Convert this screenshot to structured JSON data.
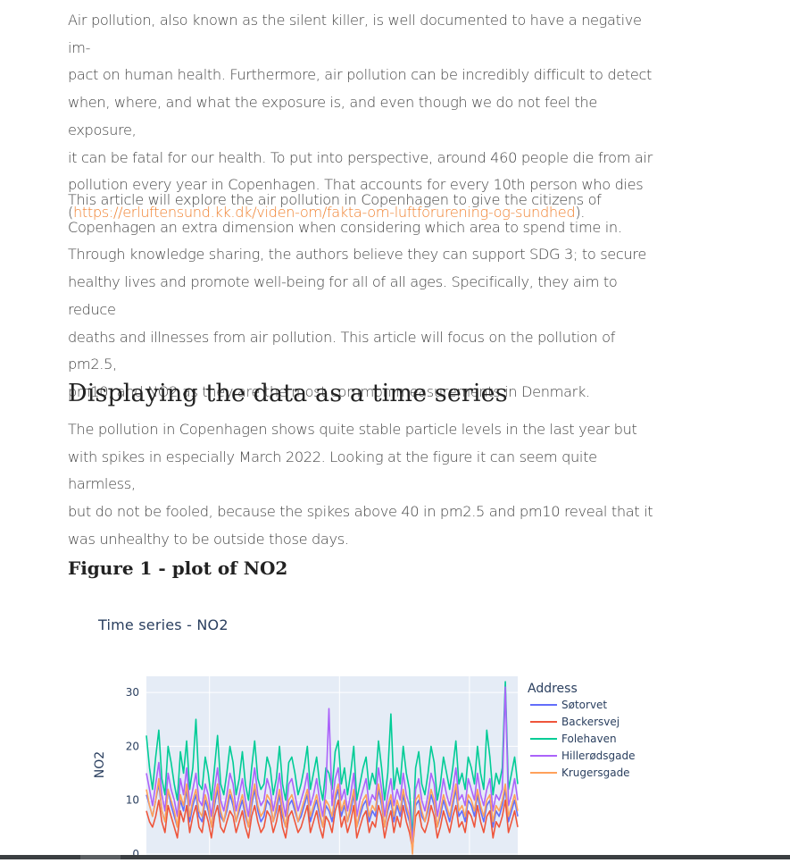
{
  "article": {
    "paragraph1_lines": [
      "Air pollution, also known as the silent killer, is well documented to have a negative im-",
      "pact on human health. Furthermore, air pollution can be incredibly difficult to detect",
      "when, where, and what the exposure is, and even though we do not feel the exposure,",
      "it can be fatal for our health. To put into perspective, around 460 people die from air",
      "pollution every year in Copenhagen. That accounts for every 10th person who dies"
    ],
    "paragraph1_open": "(",
    "paragraph1_link": "https://erluftensund.kk.dk/viden-om/fakta-om-luftforurening-og-sundhed",
    "paragraph1_close": ").",
    "paragraph2_lines": [
      "This article will explore the air pollution in Copenhagen to give the citizens of",
      "Copenhagen an extra dimension when considering which area to spend time in.",
      "Through knowledge sharing, the authors believe they can support SDG 3; to secure",
      "healthy lives and promote well-being for all of all ages. Specifically, they aim to reduce",
      "deaths and illnesses from air pollution. This article will focus on the pollution of pm2.5,",
      "pm10, and NO2 as they are the most common measurements in Denmark."
    ],
    "heading": "Displaying the data as a time series",
    "paragraph3_lines": [
      "The pollution in Copenhagen shows quite stable particle levels in the last year but",
      "with spikes in especially March 2022. Looking at the figure it can seem quite harmless,",
      "but do not be fooled, because the spikes above 40 in pm2.5 and pm10 reveal that it",
      "was unhealthy to be outside those days."
    ],
    "figure_heading": "Figure 1 - plot of NO2"
  },
  "chart_data": {
    "type": "line",
    "title": "Time series - NO2",
    "ylabel": "NO2",
    "xlabel": "",
    "ylim": [
      -1,
      33
    ],
    "y_ticks": [
      "0",
      "10",
      "20",
      "30"
    ],
    "legend_title": "Address",
    "legend_position": "right",
    "grid": true,
    "series": [
      {
        "name": "Søtorvet",
        "color": "#636efa",
        "values": [
          11,
          9,
          7,
          10,
          13,
          8,
          6,
          12,
          9,
          7,
          5,
          10,
          8,
          12,
          6,
          9,
          11,
          7,
          6,
          10,
          8,
          5,
          9,
          12,
          7,
          6,
          8,
          11,
          9,
          6,
          8,
          10,
          7,
          5,
          9,
          12,
          8,
          6,
          7,
          10,
          9,
          6,
          8,
          11,
          7,
          5,
          9,
          10,
          8,
          6,
          7,
          9,
          11,
          6,
          8,
          10,
          7,
          5,
          9,
          8,
          6,
          10,
          12,
          7,
          9,
          6,
          8,
          11,
          5,
          7,
          9,
          10,
          6,
          8,
          7,
          12,
          9,
          5,
          8,
          10,
          6,
          9,
          7,
          11,
          8,
          6,
          2,
          9,
          10,
          7,
          6,
          8,
          11,
          9,
          5,
          7,
          10,
          8,
          6,
          9,
          12,
          7,
          8,
          6,
          10,
          9,
          7,
          11,
          8,
          6,
          9,
          10,
          5,
          8,
          7,
          9,
          12,
          6,
          8,
          10,
          7
        ]
      },
      {
        "name": "Backersvej",
        "color": "#ef553b",
        "values": [
          8,
          6,
          5,
          7,
          10,
          6,
          4,
          9,
          7,
          5,
          3,
          8,
          6,
          9,
          4,
          7,
          9,
          5,
          4,
          8,
          6,
          3,
          7,
          9,
          5,
          4,
          6,
          8,
          7,
          4,
          6,
          8,
          5,
          3,
          7,
          9,
          6,
          4,
          5,
          8,
          7,
          4,
          6,
          9,
          5,
          3,
          7,
          8,
          6,
          4,
          5,
          7,
          9,
          4,
          6,
          8,
          5,
          3,
          7,
          6,
          4,
          8,
          10,
          5,
          7,
          4,
          6,
          9,
          3,
          5,
          7,
          8,
          4,
          6,
          5,
          9,
          7,
          3,
          6,
          8,
          4,
          7,
          5,
          9,
          6,
          4,
          1,
          7,
          8,
          5,
          4,
          6,
          9,
          7,
          3,
          5,
          8,
          6,
          4,
          7,
          9,
          5,
          6,
          4,
          8,
          7,
          5,
          9,
          6,
          4,
          7,
          8,
          3,
          6,
          5,
          7,
          10,
          4,
          6,
          8,
          5
        ]
      },
      {
        "name": "Folehaven",
        "color": "#00cc96",
        "values": [
          22,
          16,
          12,
          18,
          23,
          14,
          11,
          20,
          17,
          13,
          10,
          19,
          15,
          21,
          12,
          16,
          25,
          13,
          12,
          18,
          15,
          10,
          16,
          22,
          13,
          11,
          15,
          20,
          17,
          11,
          14,
          19,
          13,
          10,
          16,
          21,
          14,
          12,
          13,
          18,
          16,
          11,
          14,
          20,
          13,
          10,
          17,
          18,
          15,
          11,
          13,
          16,
          20,
          12,
          15,
          18,
          13,
          10,
          16,
          15,
          12,
          19,
          21,
          13,
          16,
          11,
          15,
          20,
          10,
          13,
          16,
          18,
          12,
          15,
          13,
          21,
          16,
          10,
          15,
          26,
          12,
          16,
          13,
          20,
          15,
          12,
          3,
          16,
          19,
          13,
          11,
          15,
          20,
          17,
          10,
          13,
          18,
          15,
          12,
          16,
          21,
          13,
          15,
          12,
          18,
          16,
          13,
          20,
          15,
          12,
          23,
          18,
          11,
          15,
          13,
          16,
          32,
          12,
          15,
          18,
          13
        ]
      },
      {
        "name": "Hillerødsgade",
        "color": "#ab63fa",
        "values": [
          15,
          12,
          9,
          13,
          17,
          11,
          8,
          15,
          12,
          10,
          7,
          14,
          11,
          16,
          9,
          12,
          15,
          10,
          9,
          13,
          11,
          7,
          12,
          16,
          10,
          8,
          11,
          15,
          13,
          8,
          11,
          14,
          10,
          7,
          12,
          16,
          11,
          9,
          10,
          14,
          12,
          8,
          11,
          15,
          10,
          7,
          13,
          14,
          11,
          8,
          10,
          12,
          15,
          9,
          11,
          14,
          10,
          7,
          12,
          27,
          9,
          14,
          16,
          10,
          12,
          8,
          11,
          15,
          7,
          10,
          12,
          14,
          9,
          11,
          10,
          16,
          12,
          7,
          11,
          14,
          9,
          12,
          10,
          15,
          11,
          9,
          2,
          12,
          14,
          10,
          8,
          11,
          15,
          13,
          7,
          10,
          14,
          11,
          9,
          12,
          16,
          10,
          11,
          9,
          14,
          12,
          10,
          15,
          11,
          9,
          12,
          14,
          8,
          11,
          10,
          12,
          31,
          9,
          11,
          14,
          10
        ]
      },
      {
        "name": "Krugersgade",
        "color": "#ffa15a",
        "values": [
          12,
          9,
          7,
          10,
          14,
          8,
          6,
          12,
          10,
          8,
          5,
          11,
          9,
          13,
          7,
          10,
          12,
          8,
          7,
          11,
          9,
          5,
          10,
          13,
          8,
          6,
          9,
          12,
          10,
          6,
          9,
          11,
          8,
          5,
          10,
          13,
          9,
          7,
          8,
          11,
          10,
          6,
          9,
          12,
          8,
          5,
          10,
          11,
          9,
          6,
          8,
          10,
          12,
          7,
          9,
          11,
          8,
          5,
          10,
          9,
          7,
          11,
          13,
          8,
          10,
          6,
          9,
          12,
          5,
          8,
          10,
          11,
          7,
          9,
          8,
          13,
          10,
          5,
          9,
          11,
          7,
          10,
          8,
          12,
          9,
          7,
          0,
          10,
          11,
          8,
          6,
          9,
          12,
          10,
          5,
          8,
          11,
          9,
          7,
          10,
          13,
          8,
          9,
          7,
          11,
          10,
          8,
          12,
          9,
          7,
          10,
          11,
          6,
          9,
          8,
          10,
          13,
          7,
          9,
          11,
          8
        ]
      }
    ]
  }
}
